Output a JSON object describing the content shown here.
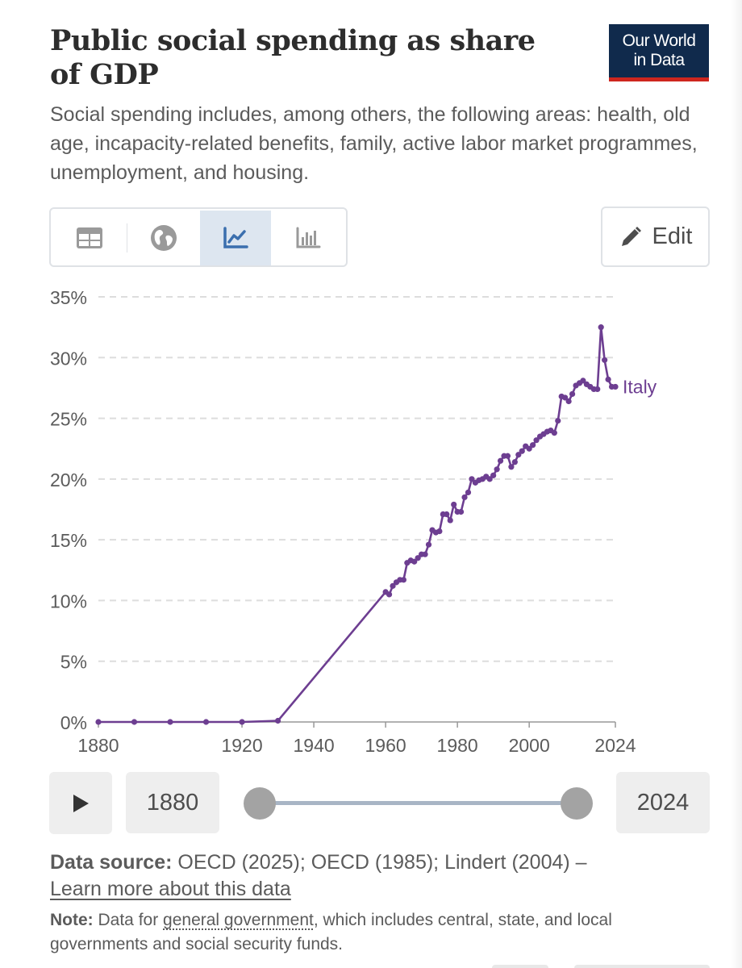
{
  "header": {
    "title": "Public social spending as share of GDP",
    "subtitle": "Social spending includes, among others, the following areas: health, old age, incapacity-related benefits, family, active labor market programmes, unemployment, and housing.",
    "logo_line1": "Our World",
    "logo_line2": "in Data"
  },
  "toolbar": {
    "tabs": [
      {
        "name": "table",
        "icon": "table-icon",
        "active": false
      },
      {
        "name": "map",
        "icon": "globe-icon",
        "active": false
      },
      {
        "name": "chart",
        "icon": "line-chart-icon",
        "active": true
      },
      {
        "name": "marimekko",
        "icon": "bar-chart-icon",
        "active": false
      }
    ],
    "edit_label": "Edit"
  },
  "colors": {
    "series": "#6d3e91",
    "grid": "#dddddd",
    "axis_text": "#5b5b5b",
    "active_tab": "#dde6f0"
  },
  "chart_data": {
    "type": "line",
    "title": "Public social spending as share of GDP",
    "xlabel": "",
    "ylabel": "",
    "xlim": [
      1880,
      2024
    ],
    "ylim": [
      0,
      35
    ],
    "y_ticks": [
      0,
      5,
      10,
      15,
      20,
      25,
      30,
      35
    ],
    "y_tick_labels": [
      "0%",
      "5%",
      "10%",
      "15%",
      "20%",
      "25%",
      "30%",
      "35%"
    ],
    "x_ticks": [
      1880,
      1920,
      1940,
      1960,
      1980,
      2000,
      2024
    ],
    "x_tick_labels": [
      "1880",
      "1920",
      "1940",
      "1960",
      "1980",
      "2000",
      "2024"
    ],
    "grid": true,
    "series": [
      {
        "name": "Italy",
        "points": [
          [
            1880,
            0
          ],
          [
            1890,
            0
          ],
          [
            1900,
            0
          ],
          [
            1910,
            0
          ],
          [
            1920,
            0
          ],
          [
            1930,
            0.1
          ],
          [
            1960,
            10.7
          ],
          [
            1961,
            10.5
          ],
          [
            1962,
            11.2
          ],
          [
            1963,
            11.5
          ],
          [
            1964,
            11.7
          ],
          [
            1965,
            11.7
          ],
          [
            1966,
            13.1
          ],
          [
            1967,
            13.3
          ],
          [
            1968,
            13.2
          ],
          [
            1969,
            13.5
          ],
          [
            1970,
            13.8
          ],
          [
            1971,
            13.8
          ],
          [
            1972,
            14.6
          ],
          [
            1973,
            15.8
          ],
          [
            1974,
            15.6
          ],
          [
            1975,
            15.7
          ],
          [
            1976,
            17.1
          ],
          [
            1977,
            17.1
          ],
          [
            1978,
            16.6
          ],
          [
            1979,
            17.9
          ],
          [
            1980,
            17.3
          ],
          [
            1981,
            17.3
          ],
          [
            1982,
            18.5
          ],
          [
            1983,
            18.9
          ],
          [
            1984,
            20.0
          ],
          [
            1985,
            19.7
          ],
          [
            1986,
            19.9
          ],
          [
            1987,
            20.0
          ],
          [
            1988,
            20.2
          ],
          [
            1989,
            20.0
          ],
          [
            1990,
            20.3
          ],
          [
            1991,
            20.8
          ],
          [
            1992,
            21.5
          ],
          [
            1993,
            21.9
          ],
          [
            1994,
            21.9
          ],
          [
            1995,
            21.0
          ],
          [
            1996,
            21.4
          ],
          [
            1997,
            22.0
          ],
          [
            1998,
            22.3
          ],
          [
            1999,
            22.7
          ],
          [
            2000,
            22.5
          ],
          [
            2001,
            22.8
          ],
          [
            2002,
            23.2
          ],
          [
            2003,
            23.5
          ],
          [
            2004,
            23.7
          ],
          [
            2005,
            23.9
          ],
          [
            2006,
            24.0
          ],
          [
            2007,
            23.8
          ],
          [
            2008,
            24.8
          ],
          [
            2009,
            26.8
          ],
          [
            2010,
            26.7
          ],
          [
            2011,
            26.4
          ],
          [
            2012,
            27.0
          ],
          [
            2013,
            27.7
          ],
          [
            2014,
            27.9
          ],
          [
            2015,
            28.1
          ],
          [
            2016,
            27.8
          ],
          [
            2017,
            27.6
          ],
          [
            2018,
            27.4
          ],
          [
            2019,
            27.4
          ],
          [
            2020,
            32.5
          ],
          [
            2021,
            29.8
          ],
          [
            2022,
            28.2
          ],
          [
            2023,
            27.6
          ],
          [
            2024,
            27.6
          ]
        ]
      }
    ]
  },
  "timeline": {
    "start_year": "1880",
    "end_year": "2024"
  },
  "footer": {
    "source_label": "Data source:",
    "source_text": " OECD (2025); OECD (1985); Lindert (2004) –",
    "learn_more": "Learn more about this data",
    "note_label": "Note:",
    "note_text_before": " Data for ",
    "note_link": "general government",
    "note_text_after": ", which includes central, state, and local governments and social security funds."
  }
}
